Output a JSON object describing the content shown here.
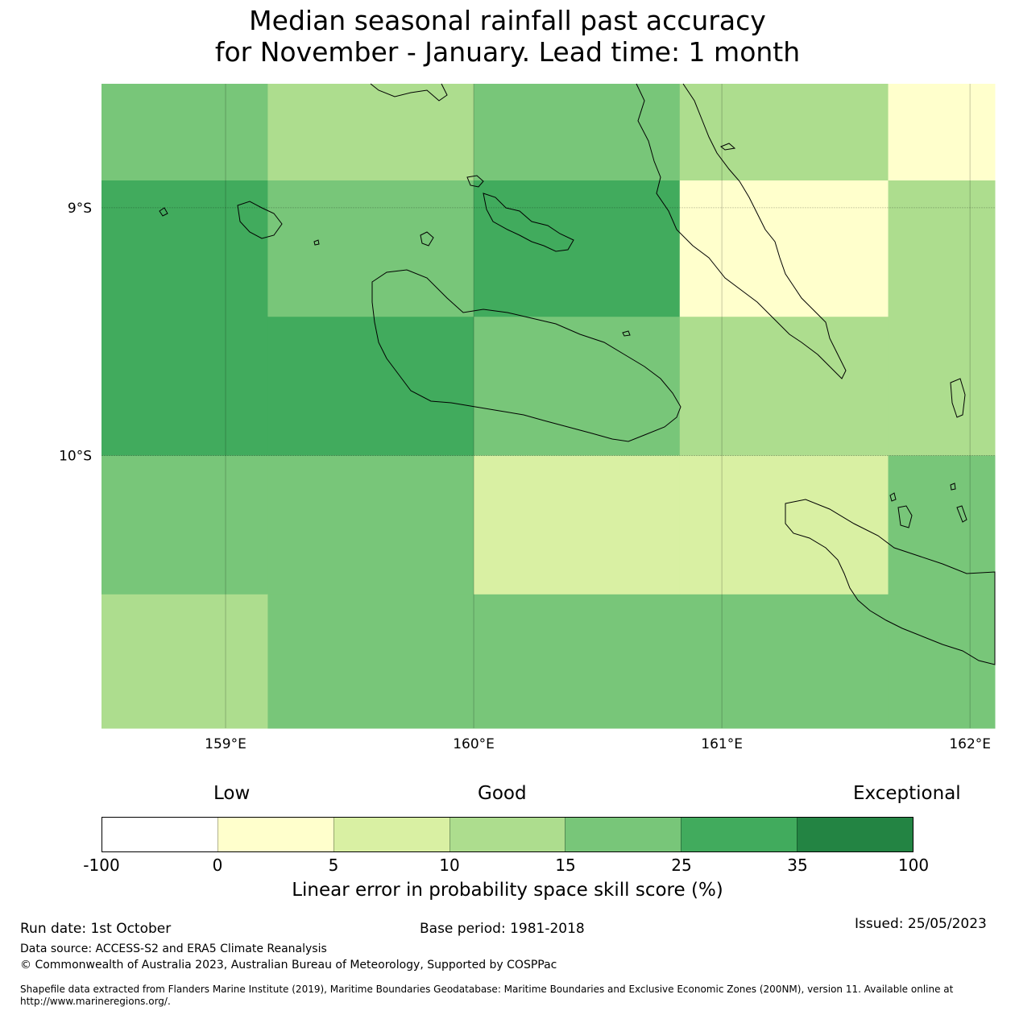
{
  "title_line1": "Median seasonal rainfall past accuracy",
  "title_line2": "for November - January. Lead time: 1 month",
  "map": {
    "lon_range": [
      158.5,
      162.1
    ],
    "lat_range": [
      -11.1,
      -8.5
    ],
    "lon_ticks": [
      {
        "value": 159,
        "label": "159°E"
      },
      {
        "value": 160,
        "label": "160°E"
      },
      {
        "value": 161,
        "label": "161°E"
      },
      {
        "value": 162,
        "label": "162°E"
      }
    ],
    "lat_ticks": [
      {
        "value": -9,
        "label": "9°S"
      },
      {
        "value": -10,
        "label": "10°S"
      }
    ],
    "grid_lon_edges": [
      158.5,
      159.17,
      160.0,
      160.83,
      161.67,
      162.1
    ],
    "grid_lat_edges": [
      -8.5,
      -8.89,
      -9.44,
      -10.0,
      -10.56,
      -11.1
    ],
    "cell_classes": [
      [
        4,
        3,
        4,
        3,
        1
      ],
      [
        5,
        4,
        5,
        1,
        3
      ],
      [
        5,
        5,
        4,
        3,
        3
      ],
      [
        4,
        4,
        2,
        2,
        4
      ],
      [
        3,
        4,
        4,
        4,
        4
      ]
    ]
  },
  "colorbar": {
    "headers": {
      "low": "Low",
      "good": "Good",
      "exceptional": "Exceptional"
    },
    "ticks": [
      "-100",
      "0",
      "5",
      "10",
      "15",
      "25",
      "35",
      "100"
    ],
    "colors": [
      "#ffffff",
      "#ffffcc",
      "#d9f0a3",
      "#addd8e",
      "#78c679",
      "#41ab5d",
      "#238443"
    ],
    "label": "Linear error in probability space skill score (%)"
  },
  "footer": {
    "run_date": "Run date: 1st October",
    "base_period": "Base period: 1981-2018",
    "issued": "Issued: 25/05/2023",
    "data_source": "Data source: ACCESS-S2 and ERA5 Climate Reanalysis",
    "copyright": "© Commonwealth of Australia 2023, Australian Bureau of Meteorology, Supported by COSPPac",
    "shapefile": "Shapefile data extracted from Flanders Marine Institute (2019), Maritime Boundaries Geodatabase: Maritime Boundaries and Exclusive Economic Zones (200NM), version 11. Available online at http://www.marineregions.org/."
  }
}
